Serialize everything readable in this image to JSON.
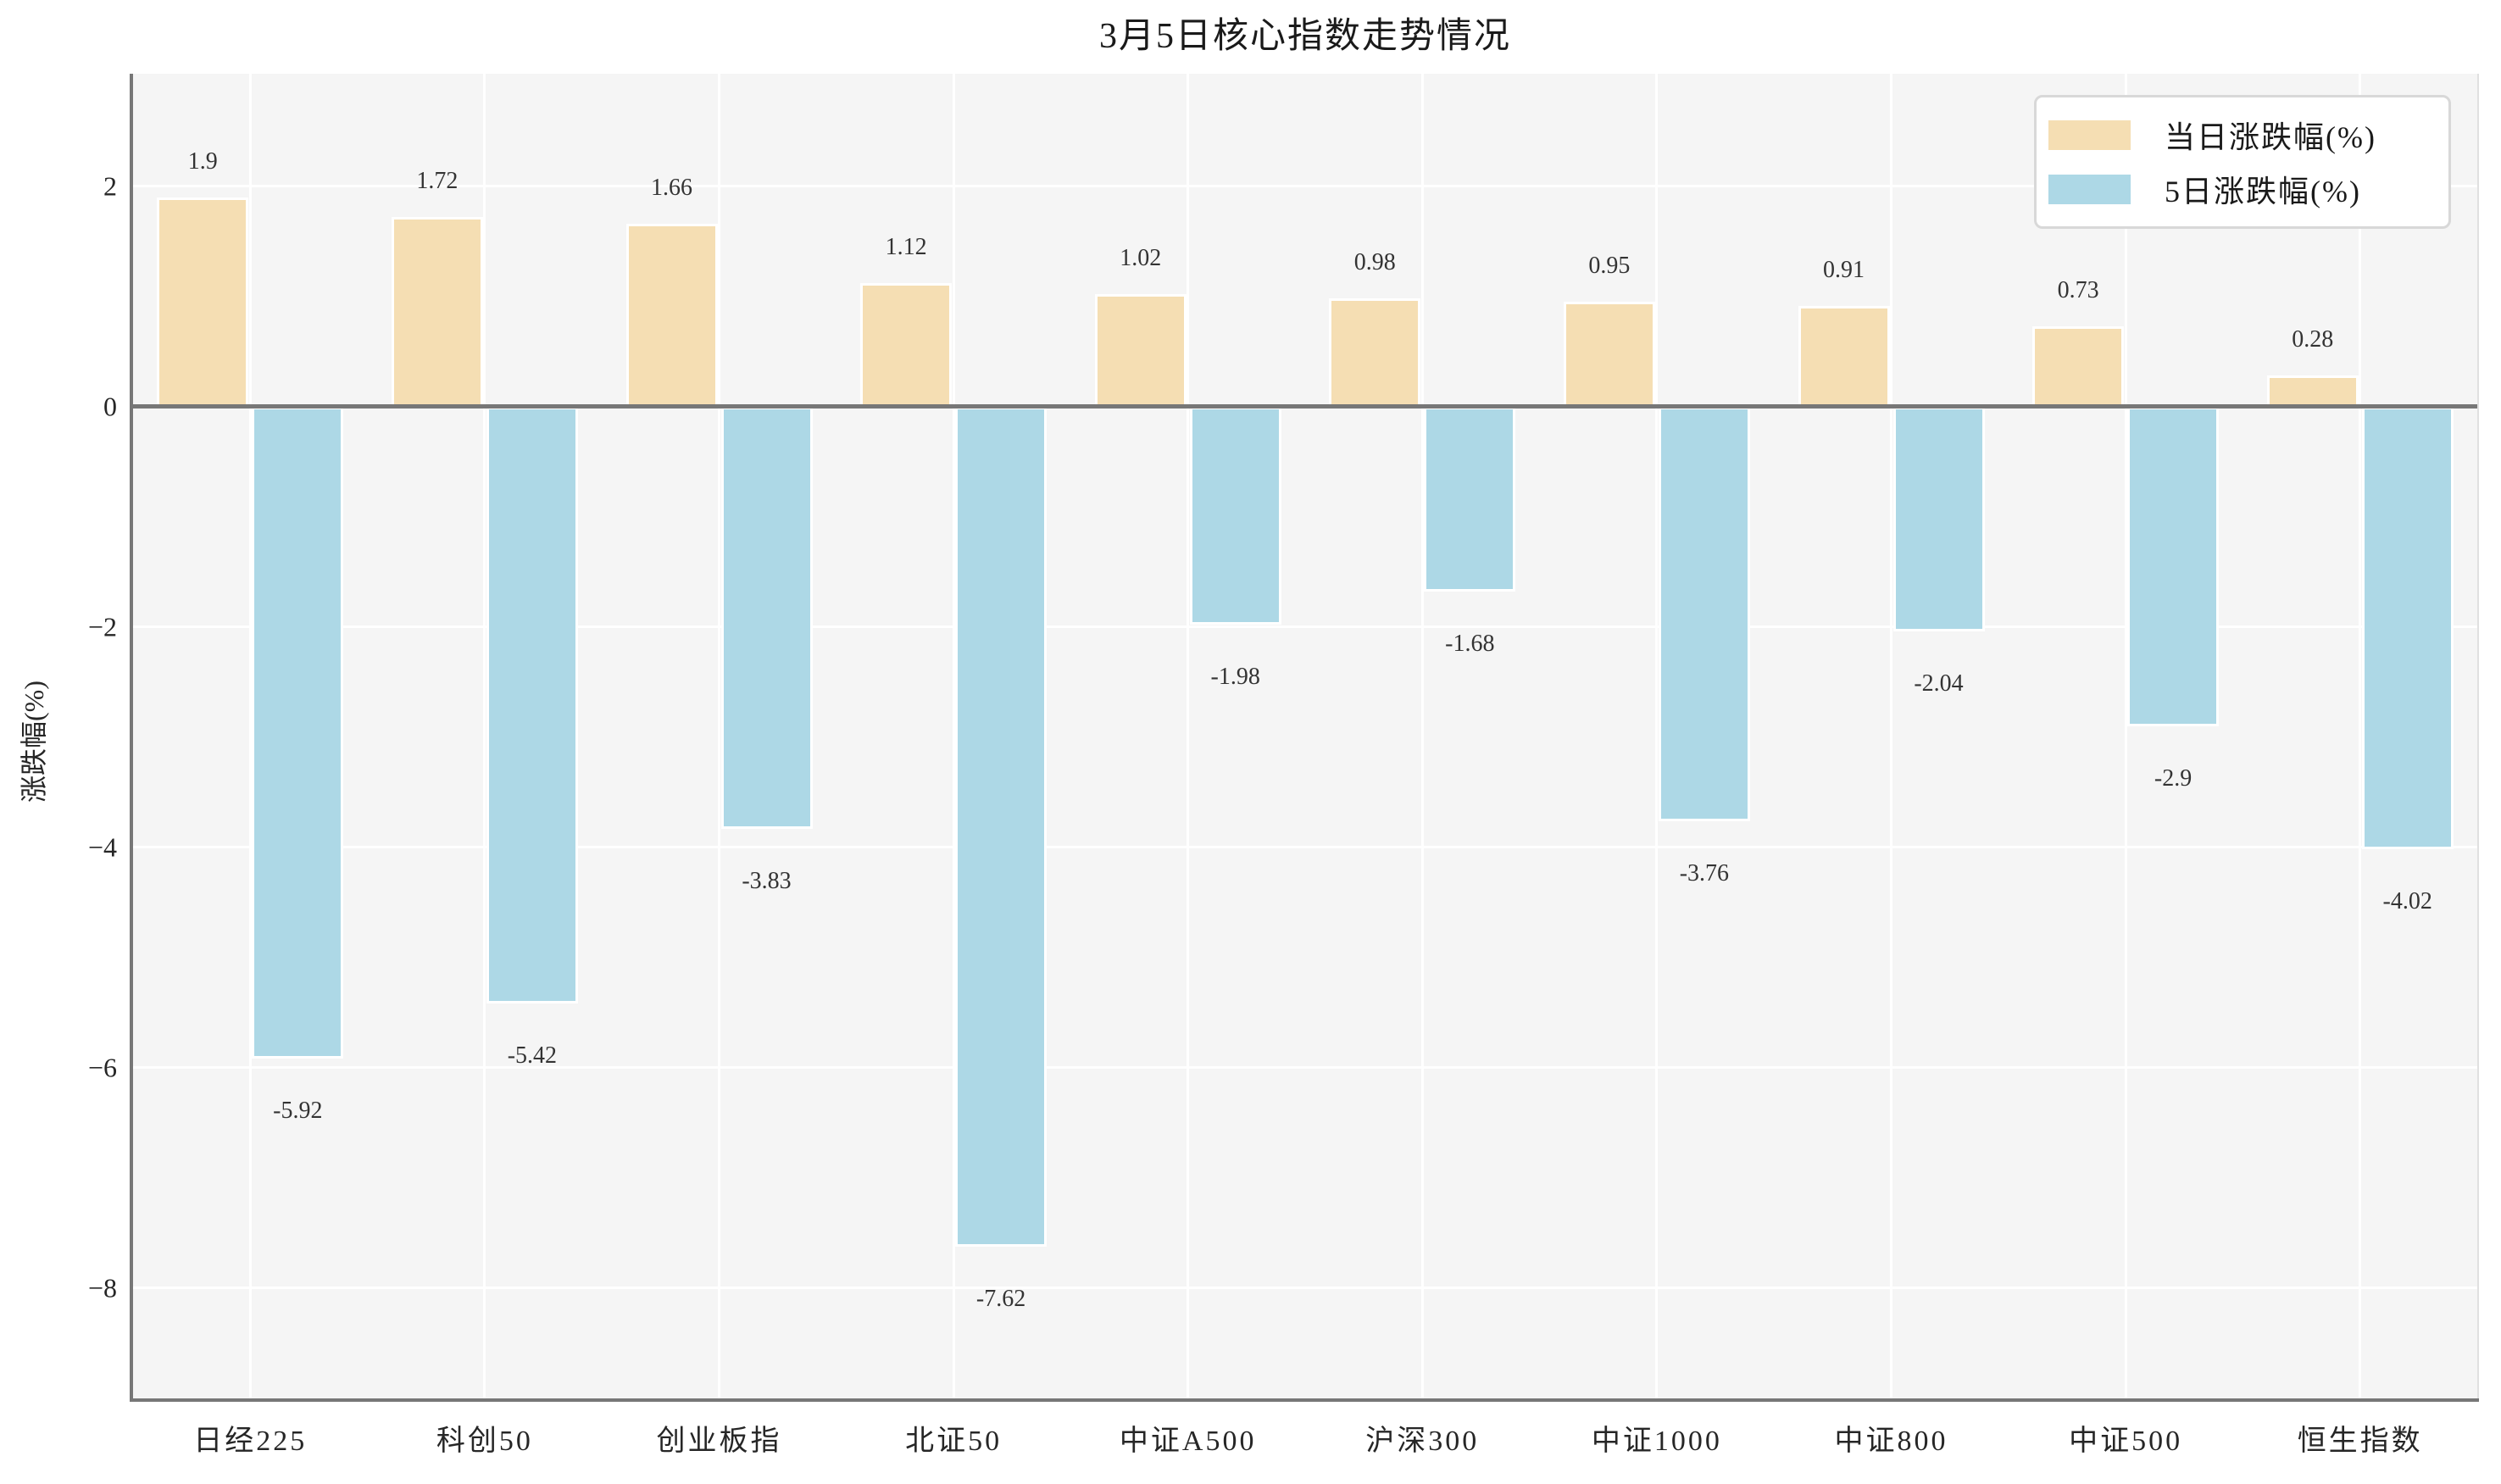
{
  "title": "3月5日核心指数走势情况",
  "chart_data": {
    "type": "bar",
    "title": "3月5日核心指数走势情况",
    "xlabel": "",
    "ylabel": "涨跌幅(%)",
    "categories": [
      "日经225",
      "科创50",
      "创业板指",
      "北证50",
      "中证A500",
      "沪深300",
      "中证1000",
      "中证800",
      "中证500",
      "恒生指数"
    ],
    "series": [
      {
        "name": "当日涨跌幅(%)",
        "color": "#f5deb3",
        "values": [
          1.9,
          1.72,
          1.66,
          1.12,
          1.02,
          0.98,
          0.95,
          0.91,
          0.73,
          0.28
        ]
      },
      {
        "name": "5日涨跌幅(%)",
        "color": "#add8e6",
        "values": [
          -5.92,
          -5.42,
          -3.83,
          -7.62,
          -1.98,
          -1.68,
          -3.76,
          -2.04,
          -2.9,
          -4.02
        ]
      }
    ],
    "ylim": [
      -9,
      3.02
    ],
    "yticks": [
      2,
      0,
      -2,
      -4,
      -6,
      -8
    ],
    "grid": true,
    "grid_color": "#ffffff",
    "plot_bg": "#f5f5f5",
    "bar_edge_color": "#ffffff",
    "zero_line_color": "#777777",
    "legend_position": "upper right",
    "value_labels_shown": true
  }
}
